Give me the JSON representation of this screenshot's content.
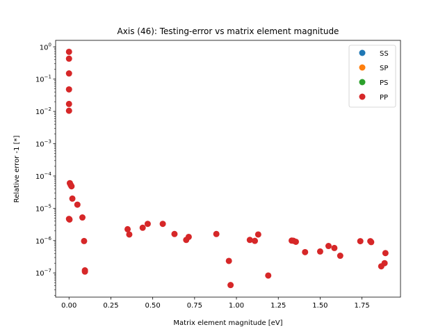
{
  "chart_data": {
    "type": "scatter",
    "title": "Axis (46): Testing-error vs matrix element magnitude",
    "xlabel": "Matrix element magnitude [eV]",
    "ylabel": "Relative error -1 [*]",
    "xlim": [
      -0.08,
      1.98
    ],
    "ylim_log10": [
      -7.75,
      0.2
    ],
    "yscale": "log",
    "grid": false,
    "legend_position": "top-right",
    "x_ticks": [
      {
        "value": 0.0,
        "label": "0.00"
      },
      {
        "value": 0.25,
        "label": "0.25"
      },
      {
        "value": 0.5,
        "label": "0.50"
      },
      {
        "value": 0.75,
        "label": "0.75"
      },
      {
        "value": 1.0,
        "label": "1.00"
      },
      {
        "value": 1.25,
        "label": "1.25"
      },
      {
        "value": 1.5,
        "label": "1.50"
      },
      {
        "value": 1.75,
        "label": "1.75"
      }
    ],
    "y_ticks": [
      {
        "exp": 0,
        "base": "10",
        "sup": "0"
      },
      {
        "exp": -1,
        "base": "10",
        "sup": "−1"
      },
      {
        "exp": -2,
        "base": "10",
        "sup": "−2"
      },
      {
        "exp": -3,
        "base": "10",
        "sup": "−3"
      },
      {
        "exp": -4,
        "base": "10",
        "sup": "−4"
      },
      {
        "exp": -5,
        "base": "10",
        "sup": "−5"
      },
      {
        "exp": -6,
        "base": "10",
        "sup": "−6"
      },
      {
        "exp": -7,
        "base": "10",
        "sup": "−7"
      }
    ],
    "series": [
      {
        "name": "SS",
        "color": "#1f77b4",
        "points": []
      },
      {
        "name": "SP",
        "color": "#ff7f0e",
        "points": []
      },
      {
        "name": "PS",
        "color": "#2ca02c",
        "points": []
      },
      {
        "name": "PP",
        "color": "#d62728",
        "points": [
          [
            0.0,
            0.7
          ],
          [
            0.0,
            0.43
          ],
          [
            0.0,
            0.15
          ],
          [
            0.0,
            0.048
          ],
          [
            0.0,
            0.017
          ],
          [
            0.0,
            0.0105
          ],
          [
            0.005,
            6e-05
          ],
          [
            0.01,
            5.3e-05
          ],
          [
            0.015,
            4.8e-05
          ],
          [
            0.02,
            2e-05
          ],
          [
            0.05,
            1.3e-05
          ],
          [
            0.0,
            4.7e-06
          ],
          [
            0.003,
            4.5e-06
          ],
          [
            0.08,
            5.2e-06
          ],
          [
            0.09,
            9.7e-07
          ],
          [
            0.095,
            1.2e-07
          ],
          [
            0.095,
            1.1e-07
          ],
          [
            0.35,
            2.25e-06
          ],
          [
            0.36,
            1.55e-06
          ],
          [
            0.44,
            2.5e-06
          ],
          [
            0.47,
            3.3e-06
          ],
          [
            0.56,
            3.3e-06
          ],
          [
            0.63,
            1.6e-06
          ],
          [
            0.7,
            1.05e-06
          ],
          [
            0.715,
            1.3e-06
          ],
          [
            0.88,
            1.6e-06
          ],
          [
            0.955,
            2.35e-07
          ],
          [
            0.965,
            4.2e-08
          ],
          [
            1.08,
            1.05e-06
          ],
          [
            1.11,
            9.8e-07
          ],
          [
            1.13,
            1.55e-06
          ],
          [
            1.19,
            8.3e-08
          ],
          [
            1.33,
            1e-06
          ],
          [
            1.34,
            9.9e-07
          ],
          [
            1.355,
            9.2e-07
          ],
          [
            1.41,
            4.4e-07
          ],
          [
            1.5,
            4.6e-07
          ],
          [
            1.55,
            6.8e-07
          ],
          [
            1.585,
            5.9e-07
          ],
          [
            1.62,
            3.4e-07
          ],
          [
            1.74,
            9.6e-07
          ],
          [
            1.8,
            9.6e-07
          ],
          [
            1.805,
            9e-07
          ],
          [
            1.865,
            1.6e-07
          ],
          [
            1.885,
            2e-07
          ],
          [
            1.89,
            4.1e-07
          ]
        ]
      }
    ]
  }
}
